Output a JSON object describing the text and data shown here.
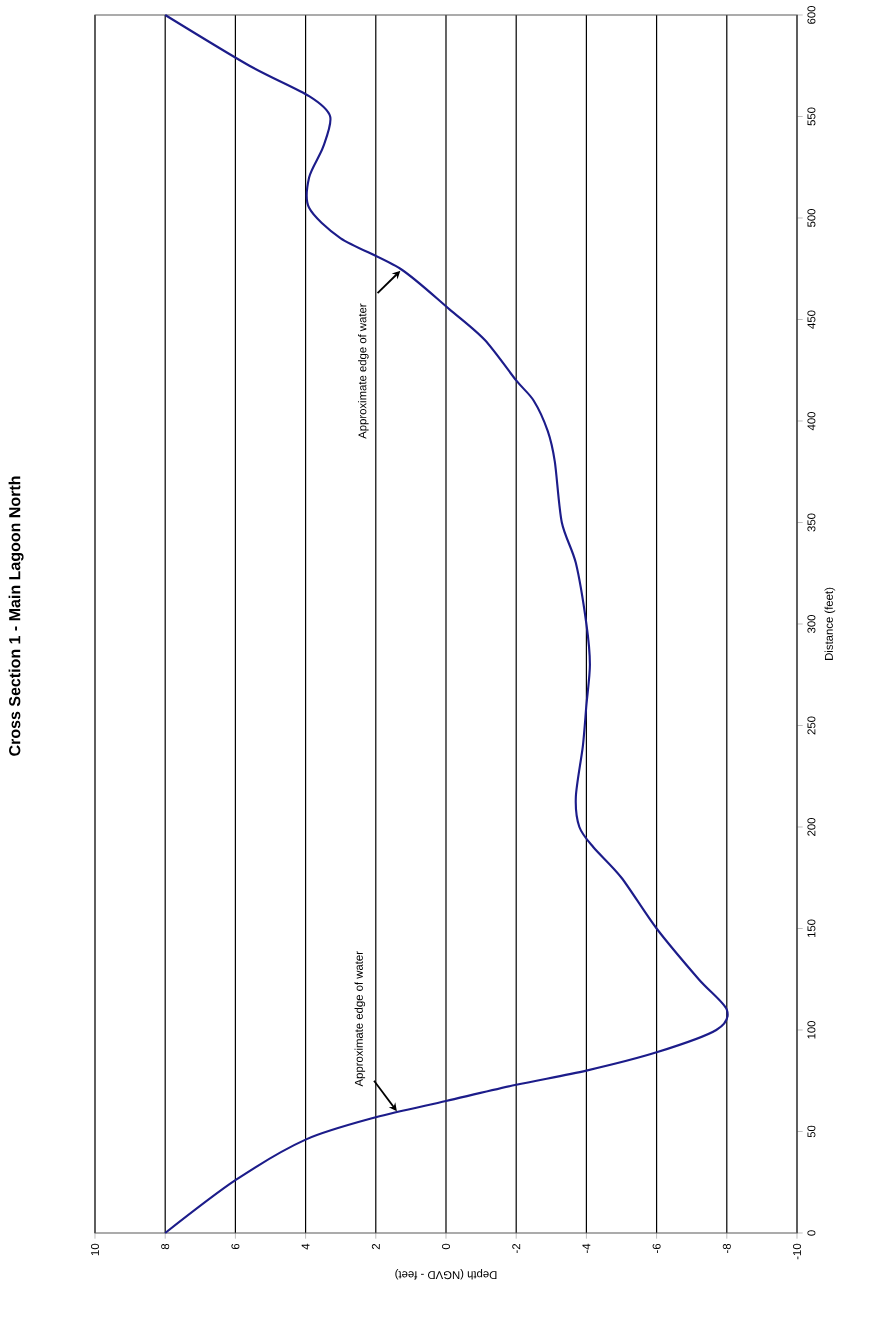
{
  "chart_data": {
    "type": "line",
    "title": "Cross Section 1 - Main Lagoon North",
    "xlabel": "Depth (NGVD - feet)",
    "ylabel": "Distance (feet)",
    "x": [
      8,
      6,
      4,
      2,
      0,
      -2,
      -4,
      -6,
      -7.7,
      -8,
      -7.2,
      -6,
      -5,
      -4.2,
      -3.8,
      -3.7,
      -3.9,
      -4,
      -4.1,
      -4,
      -3.7,
      -3.3,
      -3.1,
      -2.9,
      -2.5,
      -2,
      -1.1,
      -0.1,
      1.3,
      3,
      3.9,
      3.9,
      3.5,
      3.3,
      3.9,
      5.6,
      8
    ],
    "series": [
      {
        "color": "#1c1c8a",
        "values": [
          0,
          26,
          46,
          57,
          65,
          73,
          80,
          89,
          100,
          110,
          125,
          150,
          175,
          190,
          200,
          215,
          240,
          260,
          280,
          300,
          330,
          350,
          380,
          395,
          410,
          420,
          440,
          455,
          475,
          490,
          505,
          520,
          535,
          550,
          560,
          575,
          600
        ]
      }
    ],
    "xlim": [
      10,
      -10
    ],
    "xticks": [
      10,
      8,
      6,
      4,
      2,
      0,
      -2,
      -4,
      -6,
      -8,
      -10
    ],
    "ylim": [
      0,
      600
    ],
    "yticks": [
      0,
      50,
      100,
      150,
      200,
      250,
      300,
      350,
      400,
      450,
      500,
      550,
      600
    ],
    "grid": "x",
    "marker": "none",
    "line_style": "solid",
    "annotations": [
      {
        "text": "Approximate edge of water",
        "x": 1.4,
        "y": 60
      },
      {
        "text": "Approximate edge of water",
        "x": 1.3,
        "y": 474
      }
    ]
  }
}
